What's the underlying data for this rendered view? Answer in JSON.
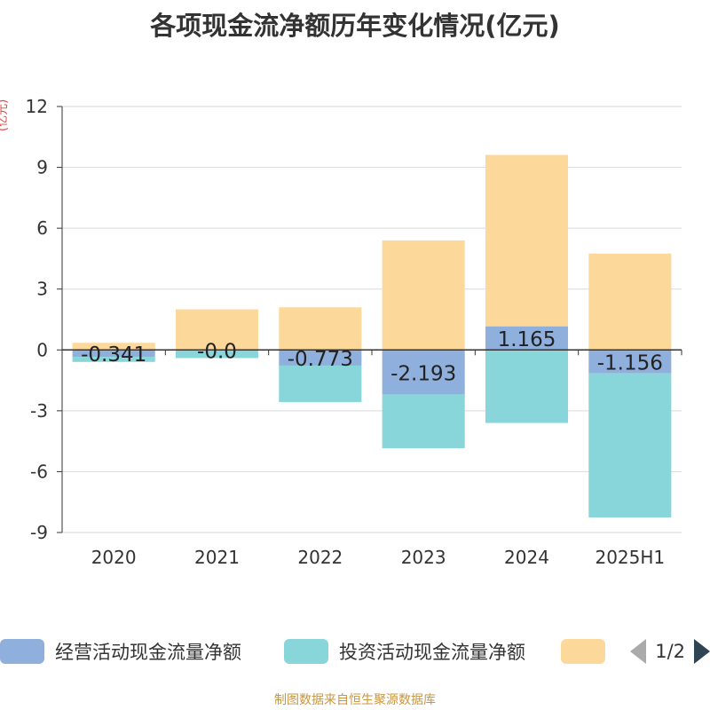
{
  "title": "各项现金流净额历年变化情况(亿元)",
  "unit_label": "(亿元)",
  "source": "制图数据来自恒生聚源数据库",
  "legend_pager": "1/2",
  "chart_data": {
    "type": "bar",
    "stacked": true,
    "categories": [
      "2020",
      "2021",
      "2022",
      "2023",
      "2024",
      "2025H1"
    ],
    "ylim": [
      -9,
      12
    ],
    "yticks": [
      12,
      9,
      6,
      3,
      0,
      -3,
      -6,
      -9
    ],
    "grid": true,
    "legend_position": "bottom",
    "series": [
      {
        "name": "经营活动现金流量净额",
        "color": "#8fb0dc",
        "values": [
          -0.341,
          -0.0,
          -0.773,
          -2.193,
          1.165,
          -1.156
        ],
        "labels": [
          "-0.341",
          "-0.0",
          "-0.773",
          "-2.193",
          "1.165",
          "-1.156"
        ]
      },
      {
        "name": "投资活动现金流量净额",
        "color": "#88d6d9",
        "values": [
          -0.25,
          -0.4,
          -1.8,
          -2.65,
          -3.6,
          -7.1
        ]
      },
      {
        "name": "",
        "color": "#fdd89b",
        "values": [
          0.35,
          2.0,
          2.1,
          5.4,
          8.45,
          4.75
        ]
      }
    ]
  }
}
